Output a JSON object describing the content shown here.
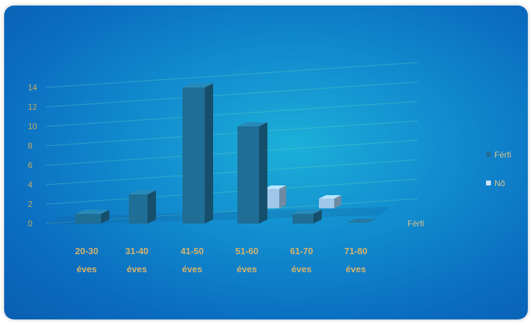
{
  "chart_data": {
    "type": "bar",
    "categories": [
      {
        "line1": "20-30",
        "line2": "éves"
      },
      {
        "line1": "31-40",
        "line2": "éves"
      },
      {
        "line1": "41-50",
        "line2": "éves"
      },
      {
        "line1": "51-60",
        "line2": "éves"
      },
      {
        "line1": "61-70",
        "line2": "éves"
      },
      {
        "line1": "71-80",
        "line2": "éves"
      }
    ],
    "series": [
      {
        "name": "Férfi",
        "values": [
          1,
          3,
          14,
          10,
          1,
          0
        ],
        "color": "#1f6e95"
      },
      {
        "name": "Nő",
        "values": [
          0,
          0,
          0,
          2,
          1,
          0
        ],
        "color": "#9fc7ea"
      }
    ],
    "yticks": [
      "0",
      "2",
      "4",
      "6",
      "8",
      "10",
      "12",
      "14"
    ],
    "ylim": [
      0,
      14
    ],
    "depth_label": "Férfi",
    "grid": true,
    "legend_position": "right"
  }
}
